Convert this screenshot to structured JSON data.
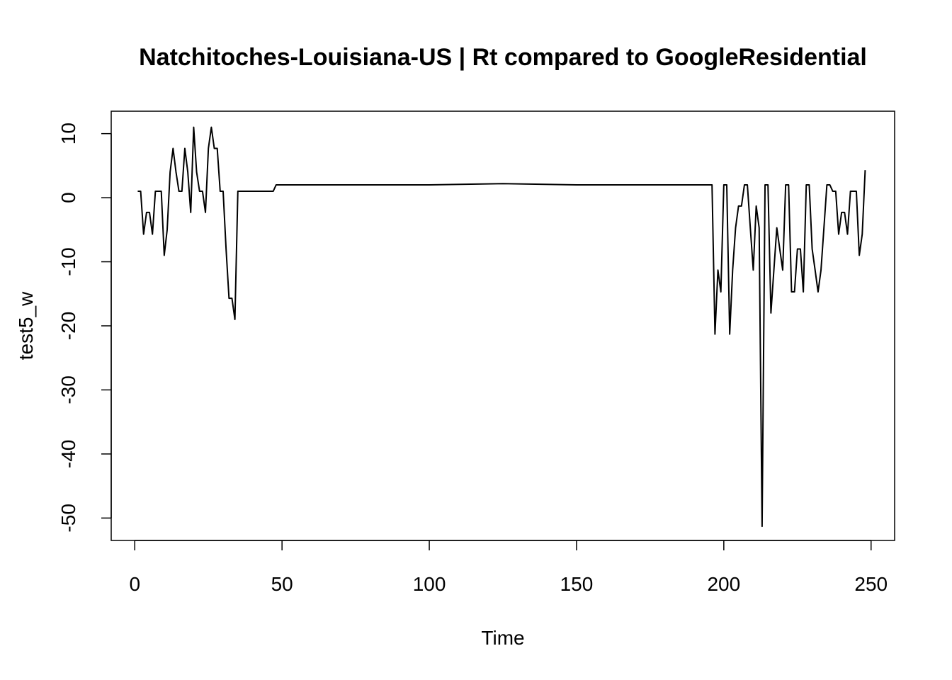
{
  "chart_data": {
    "type": "line",
    "title": "Natchitoches-Louisiana-US | Rt compared to GoogleResidential",
    "xlabel": "Time",
    "ylabel": "test5_w",
    "xlim": [
      -8,
      258
    ],
    "ylim": [
      -53.5,
      13.5
    ],
    "x_ticks": [
      0,
      50,
      100,
      150,
      200,
      250
    ],
    "y_ticks": [
      -50,
      -40,
      -30,
      -20,
      -10,
      0,
      10
    ],
    "grid": false,
    "legend": "none",
    "line_color": "#000000",
    "series": [
      {
        "x": [
          1,
          2,
          3,
          4,
          5,
          6,
          7,
          8,
          9,
          10,
          11,
          12,
          13,
          14,
          15,
          16,
          17,
          18,
          19,
          20,
          21,
          22,
          23,
          24,
          25,
          26,
          27,
          28,
          29,
          30,
          31,
          32,
          33,
          34,
          35,
          36,
          37,
          38,
          39,
          40,
          41,
          42,
          43,
          44,
          45,
          46,
          47,
          48,
          49,
          50,
          75,
          100,
          125,
          150,
          175,
          196,
          197,
          198,
          199,
          200,
          201,
          202,
          203,
          204,
          205,
          206,
          207,
          208,
          209,
          210,
          211,
          212,
          213,
          214,
          215,
          216,
          217,
          218,
          219,
          220,
          221,
          222,
          223,
          224,
          225,
          226,
          227,
          228,
          229,
          230,
          231,
          232,
          233,
          234,
          235,
          236,
          237,
          238,
          239,
          240,
          241,
          242,
          243,
          244,
          245,
          246,
          247,
          248
        ],
        "y": [
          1,
          1,
          -5.7,
          -2.3,
          -2.3,
          -5.7,
          1,
          1,
          1,
          -9,
          -5,
          4,
          7.7,
          4,
          1,
          1,
          7.7,
          4,
          -2.3,
          11,
          4,
          1,
          1,
          -2.3,
          7.7,
          11,
          7.7,
          7.7,
          1,
          1,
          -8,
          -15.7,
          -15.7,
          -19,
          1,
          1,
          1,
          1,
          1,
          1,
          1,
          1,
          1,
          1,
          1,
          1,
          1,
          2,
          2,
          2,
          2,
          2,
          2.2,
          2,
          2,
          2,
          -21.3,
          -11.3,
          -14.7,
          2,
          2,
          -21.3,
          -11.3,
          -4.7,
          -1.3,
          -1.3,
          2,
          2,
          -4.7,
          -11.3,
          -1.3,
          -4.7,
          -51.3,
          2,
          2,
          -18,
          -11.3,
          -4.7,
          -8,
          -11.3,
          2,
          2,
          -14.7,
          -14.7,
          -8,
          -8,
          -14.7,
          2,
          2,
          -8,
          -11.3,
          -14.7,
          -11.3,
          -4.7,
          2,
          2,
          1,
          1,
          -5.7,
          -2.3,
          -2.3,
          -5.7,
          1,
          1,
          1,
          -9,
          -5.7,
          4.3
        ]
      }
    ]
  }
}
